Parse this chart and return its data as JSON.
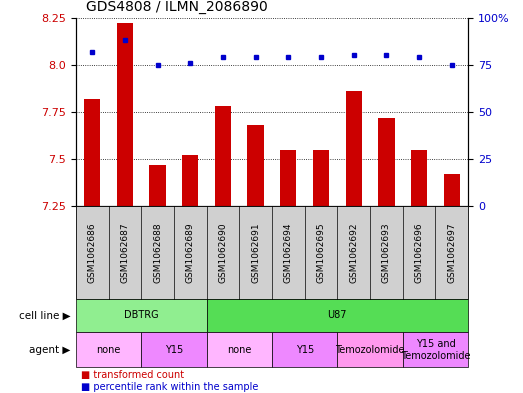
{
  "title": "GDS4808 / ILMN_2086890",
  "samples": [
    "GSM1062686",
    "GSM1062687",
    "GSM1062688",
    "GSM1062689",
    "GSM1062690",
    "GSM1062691",
    "GSM1062694",
    "GSM1062695",
    "GSM1062692",
    "GSM1062693",
    "GSM1062696",
    "GSM1062697"
  ],
  "red_values": [
    7.82,
    8.22,
    7.47,
    7.52,
    7.78,
    7.68,
    7.55,
    7.55,
    7.86,
    7.72,
    7.55,
    7.42
  ],
  "blue_values": [
    82,
    88,
    75,
    76,
    79,
    79,
    79,
    79,
    80,
    80,
    79,
    75
  ],
  "ylim_left": [
    7.25,
    8.25
  ],
  "ylim_right": [
    0,
    100
  ],
  "yticks_left": [
    7.25,
    7.5,
    7.75,
    8.0,
    8.25
  ],
  "yticks_right": [
    0,
    25,
    50,
    75,
    100
  ],
  "cell_line_groups": [
    {
      "label": "DBTRG",
      "start": 0,
      "end": 3,
      "color": "#90ee90"
    },
    {
      "label": "U87",
      "start": 4,
      "end": 11,
      "color": "#55dd55"
    }
  ],
  "agent_groups": [
    {
      "label": "none",
      "start": 0,
      "end": 1,
      "color": "#ffb6ff"
    },
    {
      "label": "Y15",
      "start": 2,
      "end": 3,
      "color": "#ee88ff"
    },
    {
      "label": "none",
      "start": 4,
      "end": 5,
      "color": "#ffb6ff"
    },
    {
      "label": "Y15",
      "start": 6,
      "end": 7,
      "color": "#ee88ff"
    },
    {
      "label": "Temozolomide",
      "start": 8,
      "end": 9,
      "color": "#ff99ee"
    },
    {
      "label": "Y15 and\nTemozolomide",
      "start": 10,
      "end": 11,
      "color": "#ee88ff"
    }
  ],
  "bar_color": "#cc0000",
  "dot_color": "#0000cc",
  "legend_items": [
    "transformed count",
    "percentile rank within the sample"
  ],
  "legend_colors": [
    "#cc0000",
    "#0000cc"
  ],
  "tick_label_color_left": "#cc0000",
  "tick_label_color_right": "#0000cc",
  "sample_band_color": "#d0d0d0"
}
